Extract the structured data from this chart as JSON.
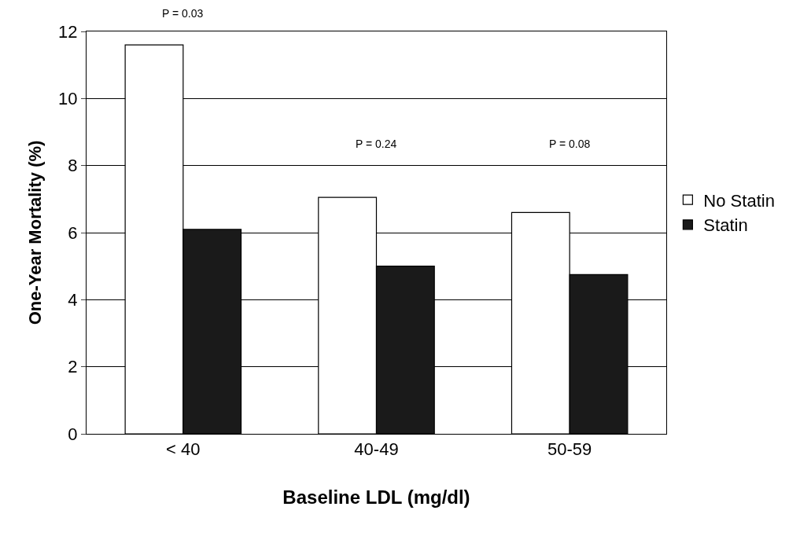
{
  "chart_data": {
    "type": "bar",
    "xlabel": "Baseline LDL (mg/dl)",
    "ylabel": "One-Year Mortality (%)",
    "categories": [
      "< 40",
      "40-49",
      "50-59"
    ],
    "series": [
      {
        "name": "No Statin",
        "color": "#ffffff",
        "values": [
          11.6,
          7.05,
          6.6
        ]
      },
      {
        "name": "Statin",
        "color": "#1a1a1a",
        "values": [
          6.1,
          5.0,
          4.75
        ]
      }
    ],
    "ylim": [
      0,
      12
    ],
    "yticks": [
      0,
      2,
      4,
      6,
      8,
      10,
      12
    ],
    "grid": "y",
    "legend": "right",
    "annotations": [
      "P = 0.03",
      "P = 0.24",
      "P = 0.08"
    ]
  }
}
